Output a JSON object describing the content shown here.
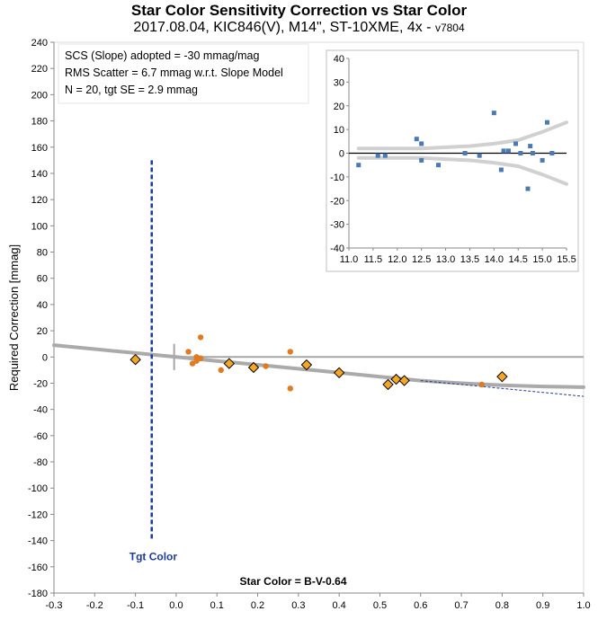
{
  "title": "Star Color Sensitivity Correction vs Star Color",
  "subtitle": "2017.08.04, KIC846(V), M14\", ST-10XME, 4x -",
  "version": "v7804",
  "annotations": [
    "SCS (Slope) adopted  =  -30 mmag/mag",
    "RMS Scatter = 6.7 mmag w.r.t. Slope Model",
    "N = 20,  tgt SE = 2.9 mmag"
  ],
  "tgt_color_label": "Tgt Color",
  "colors": {
    "diamond_fill": "#f5a623",
    "orange_dots": "#e07b1f",
    "trend": "#aaaaaa",
    "tgt_line": "#1f3c99",
    "inset_points": "#4a7ab5",
    "inset_band": "#d0d0d0"
  },
  "chart_data": [
    {
      "type": "scatter",
      "xlabel": "Star Color = B-V-0.64",
      "ylabel": "Required Correction [mmag]",
      "xlim": [
        -0.3,
        1.0
      ],
      "ylim": [
        -180,
        240
      ],
      "x_ticks": [
        "-0.3",
        "-0.2",
        "-0.1",
        "0.0",
        "0.1",
        "0.2",
        "0.3",
        "0.4",
        "0.5",
        "0.6",
        "0.7",
        "0.8",
        "0.9",
        "1.0"
      ],
      "y_ticks": [
        "-180",
        "-160",
        "-140",
        "-120",
        "-100",
        "-80",
        "-60",
        "-40",
        "-20",
        "0",
        "20",
        "40",
        "60",
        "80",
        "100",
        "120",
        "140",
        "160",
        "180",
        "200",
        "220",
        "240"
      ],
      "grid": false,
      "tgt_color_x": -0.06,
      "series": [
        {
          "marker": "diamond",
          "points": [
            [
              -0.1,
              -2
            ],
            [
              0.13,
              -5
            ],
            [
              0.19,
              -8
            ],
            [
              0.32,
              -6
            ],
            [
              0.4,
              -12
            ],
            [
              0.52,
              -21
            ],
            [
              0.54,
              -17
            ],
            [
              0.56,
              -18
            ],
            [
              0.8,
              -15
            ]
          ]
        },
        {
          "marker": "dot",
          "points": [
            [
              0.03,
              4
            ],
            [
              0.04,
              -5
            ],
            [
              0.05,
              0
            ],
            [
              0.05,
              -3
            ],
            [
              0.06,
              -1
            ],
            [
              0.06,
              15
            ],
            [
              0.11,
              -10
            ],
            [
              0.22,
              -7
            ],
            [
              0.28,
              4
            ],
            [
              0.28,
              -24
            ],
            [
              0.75,
              -21
            ]
          ]
        },
        {
          "marker": "trend",
          "points": [
            [
              -0.3,
              9
            ],
            [
              -0.2,
              6
            ],
            [
              -0.1,
              3
            ],
            [
              0.0,
              0
            ],
            [
              0.1,
              -3
            ],
            [
              0.2,
              -6
            ],
            [
              0.3,
              -9
            ],
            [
              0.4,
              -12
            ],
            [
              0.5,
              -15
            ],
            [
              0.6,
              -18
            ],
            [
              0.7,
              -20
            ],
            [
              0.8,
              -21.5
            ],
            [
              0.9,
              -22.5
            ],
            [
              1.0,
              -23
            ]
          ]
        },
        {
          "marker": "slope",
          "points": [
            [
              0.6,
              -18
            ],
            [
              0.7,
              -21
            ],
            [
              0.8,
              -24
            ],
            [
              0.9,
              -27
            ],
            [
              1.0,
              -30
            ]
          ]
        }
      ]
    },
    {
      "type": "scatter",
      "xlim": [
        11.0,
        15.5
      ],
      "ylim": [
        -40,
        40
      ],
      "x_ticks": [
        "11.0",
        "11.5",
        "12.0",
        "12.5",
        "13.0",
        "13.5",
        "14.0",
        "14.5",
        "15.0",
        "15.5"
      ],
      "y_ticks": [
        "-40",
        "-30",
        "-20",
        "-10",
        "0",
        "10",
        "20",
        "30",
        "40"
      ],
      "points": [
        [
          11.2,
          -5
        ],
        [
          11.6,
          -1
        ],
        [
          11.75,
          -1
        ],
        [
          12.4,
          6
        ],
        [
          12.5,
          4
        ],
        [
          12.5,
          -3
        ],
        [
          12.85,
          -5
        ],
        [
          13.4,
          0
        ],
        [
          13.7,
          -1
        ],
        [
          14.0,
          17
        ],
        [
          14.15,
          -7
        ],
        [
          14.2,
          1
        ],
        [
          14.3,
          1
        ],
        [
          14.45,
          4
        ],
        [
          14.55,
          0
        ],
        [
          14.7,
          -15
        ],
        [
          14.75,
          3
        ],
        [
          14.8,
          0
        ],
        [
          15.0,
          -3
        ],
        [
          15.1,
          13
        ],
        [
          15.2,
          0
        ]
      ],
      "band_upper": [
        [
          11.2,
          2
        ],
        [
          12.0,
          2
        ],
        [
          12.5,
          2
        ],
        [
          13.0,
          2.5
        ],
        [
          13.5,
          3
        ],
        [
          14.0,
          4
        ],
        [
          14.5,
          5.5
        ],
        [
          15.0,
          9
        ],
        [
          15.5,
          13
        ]
      ],
      "band_lower": [
        [
          11.2,
          -2
        ],
        [
          12.0,
          -2
        ],
        [
          12.5,
          -2
        ],
        [
          13.0,
          -2.5
        ],
        [
          13.5,
          -3
        ],
        [
          14.0,
          -4
        ],
        [
          14.5,
          -5.5
        ],
        [
          15.0,
          -9
        ],
        [
          15.5,
          -13
        ]
      ]
    }
  ]
}
